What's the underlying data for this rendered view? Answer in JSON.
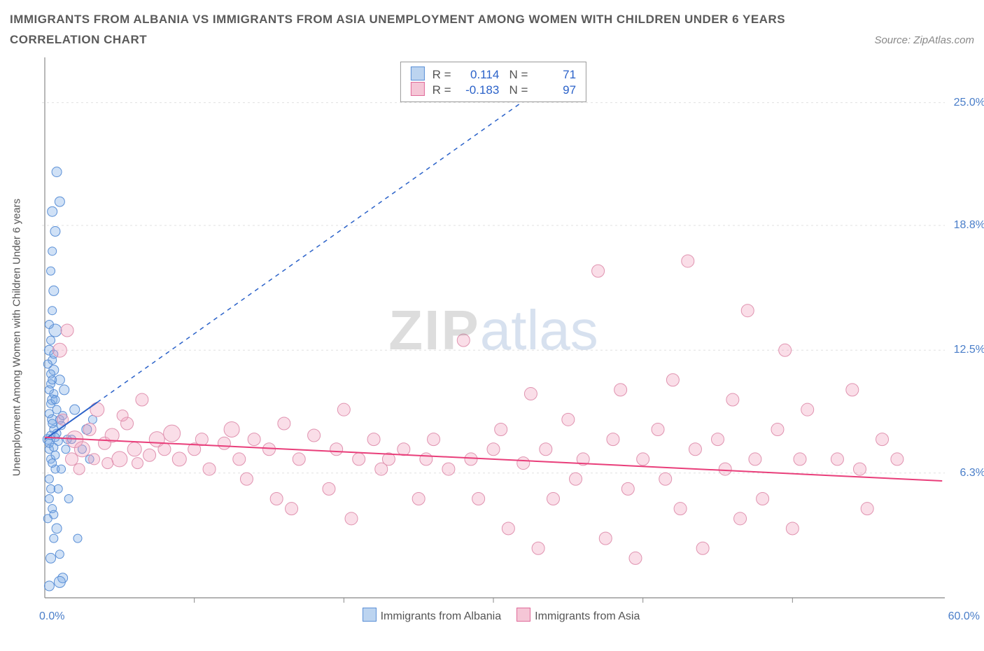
{
  "title": "IMMIGRANTS FROM ALBANIA VS IMMIGRANTS FROM ASIA UNEMPLOYMENT AMONG WOMEN WITH CHILDREN UNDER 6 YEARS",
  "subtitle": "CORRELATION CHART",
  "source_label": "Source: ZipAtlas.com",
  "y_axis_label": "Unemployment Among Women with Children Under 6 years",
  "watermark": {
    "a": "ZIP",
    "b": "atlas"
  },
  "chart": {
    "type": "scatter",
    "background_color": "#ffffff",
    "grid_color": "#e0e0e0",
    "axis_color": "#888888",
    "x_range": [
      0,
      60
    ],
    "y_range": [
      0,
      27
    ],
    "y_ticks": [
      {
        "v": 6.3,
        "label": "6.3%"
      },
      {
        "v": 12.5,
        "label": "12.5%"
      },
      {
        "v": 18.8,
        "label": "18.8%"
      },
      {
        "v": 25.0,
        "label": "25.0%"
      }
    ],
    "x_ticks_minor": [
      10,
      20,
      30,
      40,
      50
    ],
    "x_left_label": "0.0%",
    "x_right_label": "60.0%",
    "series": [
      {
        "name": "Immigrants from Albania",
        "fill": "rgba(120,170,230,0.35)",
        "stroke": "#5a8fd6",
        "swatch_fill": "#bcd4f0",
        "swatch_stroke": "#5a8fd6",
        "legend_stats": {
          "R": "0.114",
          "N": "71"
        },
        "regression": {
          "x1": 0,
          "y1": 8.0,
          "x2": 60,
          "y2": 40.0,
          "solid_until_x": 3.5,
          "color": "#2b62c9"
        },
        "points": [
          [
            0.2,
            8.0,
            7
          ],
          [
            0.3,
            7.5,
            6
          ],
          [
            0.5,
            9.0,
            7
          ],
          [
            0.4,
            7.0,
            6
          ],
          [
            0.6,
            8.5,
            6
          ],
          [
            0.7,
            6.5,
            6
          ],
          [
            0.3,
            5.0,
            6
          ],
          [
            0.5,
            4.5,
            6
          ],
          [
            0.8,
            3.5,
            7
          ],
          [
            0.6,
            3.0,
            6
          ],
          [
            0.4,
            2.0,
            7
          ],
          [
            1.0,
            2.2,
            6
          ],
          [
            1.2,
            1.0,
            7
          ],
          [
            1.0,
            0.8,
            8
          ],
          [
            0.3,
            0.6,
            7
          ],
          [
            0.5,
            10.0,
            7
          ],
          [
            0.4,
            10.8,
            6
          ],
          [
            0.6,
            11.5,
            7
          ],
          [
            0.3,
            12.5,
            7
          ],
          [
            0.5,
            12.0,
            6
          ],
          [
            0.7,
            13.5,
            9
          ],
          [
            0.4,
            13.0,
            6
          ],
          [
            0.8,
            9.5,
            6
          ],
          [
            1.0,
            9.0,
            6
          ],
          [
            1.3,
            10.5,
            7
          ],
          [
            1.5,
            8.0,
            6
          ],
          [
            1.0,
            11.0,
            7
          ],
          [
            0.5,
            14.5,
            6
          ],
          [
            0.6,
            15.5,
            7
          ],
          [
            0.4,
            16.5,
            6
          ],
          [
            0.5,
            17.5,
            6
          ],
          [
            0.7,
            18.5,
            7
          ],
          [
            0.5,
            19.5,
            7
          ],
          [
            0.8,
            21.5,
            7
          ],
          [
            1.0,
            20.0,
            7
          ],
          [
            0.3,
            6.0,
            6
          ],
          [
            0.4,
            5.5,
            6
          ],
          [
            0.2,
            4.0,
            6
          ],
          [
            0.6,
            4.2,
            6
          ],
          [
            0.9,
            5.5,
            6
          ],
          [
            1.1,
            6.5,
            6
          ],
          [
            1.4,
            7.5,
            6
          ],
          [
            1.6,
            5.0,
            6
          ],
          [
            1.8,
            8.0,
            6
          ],
          [
            2.0,
            9.5,
            7
          ],
          [
            2.2,
            3.0,
            6
          ],
          [
            2.5,
            7.5,
            6
          ],
          [
            2.8,
            8.5,
            7
          ],
          [
            3.0,
            7.0,
            6
          ],
          [
            3.2,
            9.0,
            6
          ],
          [
            0.3,
            7.8,
            6
          ],
          [
            0.4,
            8.2,
            6
          ],
          [
            0.6,
            7.6,
            6
          ],
          [
            0.8,
            8.3,
            6
          ],
          [
            0.5,
            6.8,
            6
          ],
          [
            0.7,
            7.2,
            6
          ],
          [
            0.3,
            9.3,
            6
          ],
          [
            0.4,
            9.8,
            6
          ],
          [
            0.6,
            10.3,
            6
          ],
          [
            0.2,
            11.8,
            6
          ],
          [
            0.3,
            13.8,
            6
          ],
          [
            0.5,
            8.8,
            6
          ],
          [
            0.7,
            8.1,
            6
          ],
          [
            0.9,
            7.9,
            6
          ],
          [
            1.1,
            8.7,
            6
          ],
          [
            1.2,
            9.2,
            6
          ],
          [
            0.4,
            11.3,
            6
          ],
          [
            0.6,
            12.3,
            6
          ],
          [
            0.3,
            10.5,
            6
          ],
          [
            0.5,
            11.0,
            6
          ],
          [
            0.7,
            10.0,
            6
          ]
        ]
      },
      {
        "name": "Immigrants from Asia",
        "fill": "rgba(240,160,190,0.35)",
        "stroke": "#e093b0",
        "swatch_fill": "#f5c6d6",
        "swatch_stroke": "#e06a9a",
        "legend_stats": {
          "R": "-0.183",
          "N": "97"
        },
        "regression": {
          "x1": 0,
          "y1": 8.1,
          "x2": 60,
          "y2": 5.9,
          "solid_until_x": 60,
          "color": "#e93e7a"
        },
        "points": [
          [
            1.0,
            12.5,
            10
          ],
          [
            1.5,
            13.5,
            9
          ],
          [
            2.0,
            8.0,
            12
          ],
          [
            2.5,
            7.5,
            11
          ],
          [
            3.0,
            8.5,
            9
          ],
          [
            3.5,
            9.5,
            10
          ],
          [
            4.0,
            7.8,
            9
          ],
          [
            4.5,
            8.2,
            10
          ],
          [
            5.0,
            7.0,
            11
          ],
          [
            5.5,
            8.8,
            9
          ],
          [
            6.0,
            7.5,
            10
          ],
          [
            6.5,
            10.0,
            9
          ],
          [
            7.0,
            7.2,
            9
          ],
          [
            7.5,
            8.0,
            11
          ],
          [
            8.0,
            7.5,
            9
          ],
          [
            8.5,
            8.3,
            12
          ],
          [
            9.0,
            7.0,
            10
          ],
          [
            10.0,
            7.5,
            9
          ],
          [
            10.5,
            8.0,
            9
          ],
          [
            11.0,
            6.5,
            9
          ],
          [
            12.0,
            7.8,
            9
          ],
          [
            12.5,
            8.5,
            11
          ],
          [
            13.0,
            7.0,
            9
          ],
          [
            13.5,
            6.0,
            9
          ],
          [
            14.0,
            8.0,
            9
          ],
          [
            15.0,
            7.5,
            9
          ],
          [
            15.5,
            5.0,
            9
          ],
          [
            16.0,
            8.8,
            9
          ],
          [
            16.5,
            4.5,
            9
          ],
          [
            17.0,
            7.0,
            9
          ],
          [
            18.0,
            8.2,
            9
          ],
          [
            19.0,
            5.5,
            9
          ],
          [
            19.5,
            7.5,
            9
          ],
          [
            20.0,
            9.5,
            9
          ],
          [
            20.5,
            4.0,
            9
          ],
          [
            21.0,
            7.0,
            9
          ],
          [
            22.0,
            8.0,
            9
          ],
          [
            22.5,
            6.5,
            9
          ],
          [
            23.0,
            7.0,
            9
          ],
          [
            24.0,
            7.5,
            9
          ],
          [
            25.0,
            5.0,
            9
          ],
          [
            25.5,
            7.0,
            9
          ],
          [
            26.0,
            8.0,
            9
          ],
          [
            27.0,
            6.5,
            9
          ],
          [
            28.0,
            13.0,
            9
          ],
          [
            28.5,
            7.0,
            9
          ],
          [
            29.0,
            5.0,
            9
          ],
          [
            30.0,
            7.5,
            9
          ],
          [
            30.5,
            8.5,
            9
          ],
          [
            31.0,
            3.5,
            9
          ],
          [
            32.0,
            6.8,
            9
          ],
          [
            32.5,
            10.3,
            9
          ],
          [
            33.0,
            2.5,
            9
          ],
          [
            33.5,
            7.5,
            9
          ],
          [
            34.0,
            5.0,
            9
          ],
          [
            35.0,
            9.0,
            9
          ],
          [
            35.5,
            6.0,
            9
          ],
          [
            36.0,
            7.0,
            9
          ],
          [
            37.0,
            16.5,
            9
          ],
          [
            37.5,
            3.0,
            9
          ],
          [
            38.0,
            8.0,
            9
          ],
          [
            38.5,
            10.5,
            9
          ],
          [
            39.0,
            5.5,
            9
          ],
          [
            39.5,
            2.0,
            9
          ],
          [
            40.0,
            7.0,
            9
          ],
          [
            41.0,
            8.5,
            9
          ],
          [
            41.5,
            6.0,
            9
          ],
          [
            42.0,
            11.0,
            9
          ],
          [
            42.5,
            4.5,
            9
          ],
          [
            43.0,
            17.0,
            9
          ],
          [
            43.5,
            7.5,
            9
          ],
          [
            44.0,
            2.5,
            9
          ],
          [
            45.0,
            8.0,
            9
          ],
          [
            45.5,
            6.5,
            9
          ],
          [
            46.0,
            10.0,
            9
          ],
          [
            46.5,
            4.0,
            9
          ],
          [
            47.0,
            14.5,
            9
          ],
          [
            47.5,
            7.0,
            9
          ],
          [
            48.0,
            5.0,
            9
          ],
          [
            49.0,
            8.5,
            9
          ],
          [
            49.5,
            12.5,
            9
          ],
          [
            50.0,
            3.5,
            9
          ],
          [
            50.5,
            7.0,
            9
          ],
          [
            51.0,
            9.5,
            9
          ],
          [
            53.0,
            7.0,
            9
          ],
          [
            54.0,
            10.5,
            9
          ],
          [
            54.5,
            6.5,
            9
          ],
          [
            55.0,
            4.5,
            9
          ],
          [
            56.0,
            8.0,
            9
          ],
          [
            57.0,
            7.0,
            9
          ],
          [
            1.2,
            9.0,
            8
          ],
          [
            1.8,
            7.0,
            9
          ],
          [
            2.3,
            6.5,
            8
          ],
          [
            3.3,
            7.0,
            8
          ],
          [
            4.2,
            6.8,
            8
          ],
          [
            5.2,
            9.2,
            8
          ],
          [
            6.2,
            6.8,
            8
          ]
        ]
      }
    ]
  },
  "bottom_legend": [
    {
      "label": "Immigrants from Albania",
      "swatch_fill": "#bcd4f0",
      "swatch_stroke": "#5a8fd6"
    },
    {
      "label": "Immigrants from Asia",
      "swatch_fill": "#f5c6d6",
      "swatch_stroke": "#e06a9a"
    }
  ]
}
